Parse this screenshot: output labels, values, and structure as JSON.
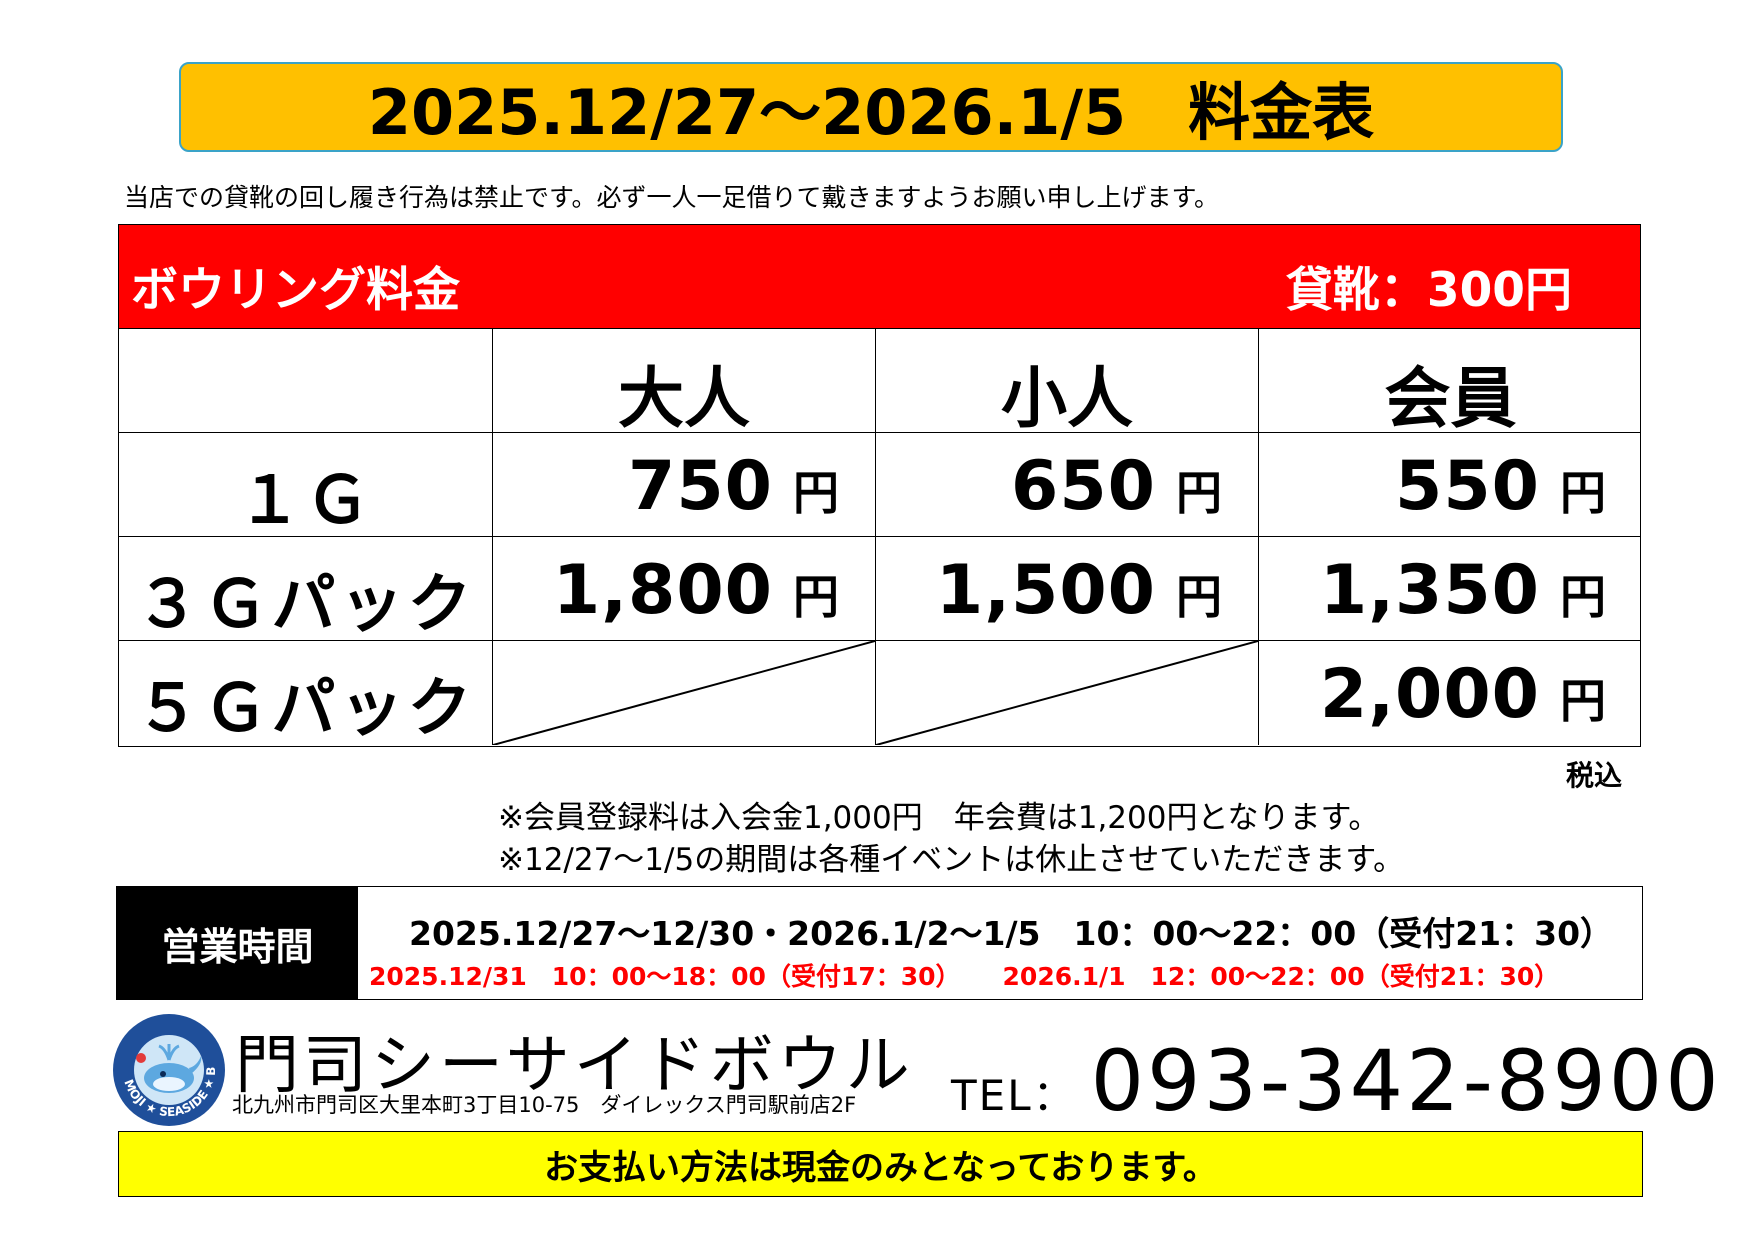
{
  "title": "2025.12/27～2026.1/5　料金表",
  "notice": "当店での貸靴の回し履き行為は禁止です。必ず一人一足借りて戴きますようお願い申し上げます。",
  "price_table": {
    "header_left": "ボウリング料金",
    "header_right": "貸靴：300円",
    "columns": [
      "",
      "大人",
      "小人",
      "会員"
    ],
    "yen": "円",
    "rows": [
      {
        "label": "１Ｇ",
        "values": [
          "750",
          "650",
          "550"
        ]
      },
      {
        "label": "３Ｇパック",
        "values": [
          "1,800",
          "1,500",
          "1,350"
        ]
      },
      {
        "label": "５Ｇパック",
        "values": [
          null,
          null,
          "2,000"
        ]
      }
    ],
    "tax_note": "税込"
  },
  "notes": [
    "※会員登録料は入会金1,000円　年会費は1,200円となります。",
    "※12/27～1/5の期間は各種イベントは休止させていただきます。"
  ],
  "hours": {
    "label": "営業時間",
    "line1": "2025.12/27～12/30・2026.1/2～1/5　10：00～22：00（受付21：30）",
    "line2a": "2025.12/31　10：00～18：00（受付17：30）",
    "line2b": "2026.1/1　12：00～22：00（受付21：30）",
    "line2_color": "#ff0000"
  },
  "logo": {
    "icon": "whale-logo-icon",
    "text": "MOJI ★ SEASIDE ★ BOWL"
  },
  "company": {
    "name": "門司シーサイドボウル",
    "address": "北九州市門司区大里本町3丁目10-75　ダイレックス門司駅前店2F",
    "tel_label": "TEL：",
    "tel": "093-342-8900"
  },
  "payment_notice": "お支払い方法は現金のみとなっております。",
  "colors": {
    "title_bg": "#ffc000",
    "header_bg": "#ff0000",
    "payment_bg": "#ffff00",
    "hours_label_bg": "#000000"
  }
}
